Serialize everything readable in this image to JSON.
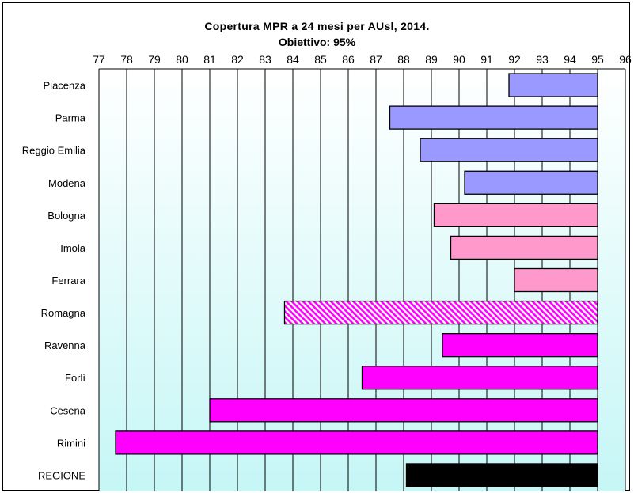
{
  "chart_data": {
    "type": "bar",
    "orientation": "horizontal",
    "title": "Copertura MPR a 24 mesi per AUsl, 2014.",
    "subtitle": "Obiettivo: 95%",
    "categories": [
      "Piacenza",
      "Parma",
      "Reggio Emilia",
      "Modena",
      "Bologna",
      "Imola",
      "Ferrara",
      "Romagna",
      "Ravenna",
      "Forlì",
      "Cesena",
      "Rimini",
      "REGIONE"
    ],
    "values": [
      91.8,
      87.5,
      88.6,
      90.2,
      89.1,
      89.7,
      92.0,
      83.7,
      89.4,
      86.5,
      81.0,
      77.6,
      88.1
    ],
    "bar_end": 95,
    "xlim": [
      77,
      96
    ],
    "xticks": [
      "77",
      "78",
      "79",
      "80",
      "81",
      "82",
      "83",
      "84",
      "85",
      "86",
      "87",
      "88",
      "89",
      "90",
      "91",
      "92",
      "93",
      "94",
      "95",
      "96"
    ],
    "axis_position": "top",
    "grid": true,
    "colors": [
      "#9999ff",
      "#9999ff",
      "#9999ff",
      "#9999ff",
      "#ff99cc",
      "#ff99cc",
      "#ff99cc",
      "#ff00ff",
      "#ff00ff",
      "#ff00ff",
      "#ff00ff",
      "#ff00ff",
      "#000000"
    ],
    "patterns": [
      "solid",
      "solid",
      "solid",
      "solid",
      "solid",
      "solid",
      "solid",
      "hatched",
      "solid",
      "solid",
      "solid",
      "solid",
      "solid"
    ],
    "plot_background": [
      "#ffffff",
      "#c6f6f6"
    ]
  }
}
